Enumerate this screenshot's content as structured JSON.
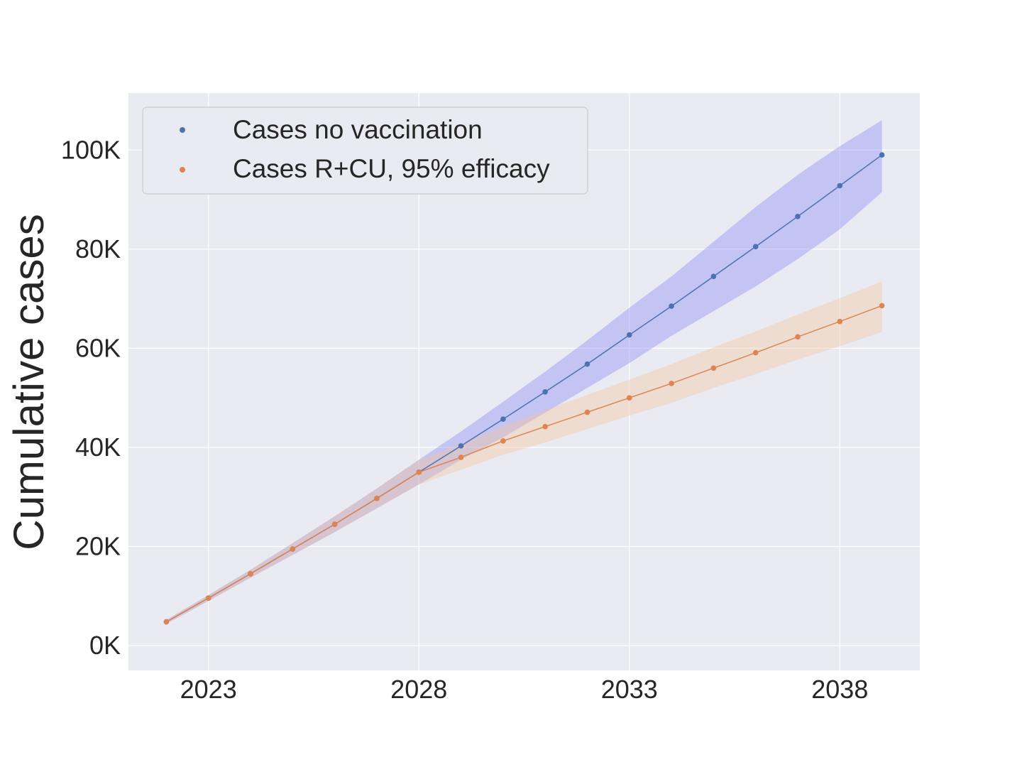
{
  "chart_data": {
    "type": "line",
    "title": "",
    "xlabel": "",
    "ylabel": "Cumulative cases",
    "x": [
      2022,
      2023,
      2024,
      2025,
      2026,
      2027,
      2028,
      2029,
      2030,
      2031,
      2032,
      2033,
      2034,
      2035,
      2036,
      2037,
      2038,
      2039
    ],
    "xlim": [
      2021.1,
      2039.9
    ],
    "ylim": [
      -5000,
      111500
    ],
    "xticks": [
      2023,
      2028,
      2033,
      2038
    ],
    "xtick_labels": [
      "2023",
      "2028",
      "2033",
      "2038"
    ],
    "yticks": [
      0,
      20000,
      40000,
      60000,
      80000,
      100000
    ],
    "ytick_labels": [
      "0K",
      "20K",
      "40K",
      "60K",
      "80K",
      "100K"
    ],
    "grid": true,
    "background": "#eaeaf2",
    "legend_position": "top-left",
    "series": [
      {
        "name": "Cases no vaccination",
        "color": "#4c72b0",
        "band_color": "#8a8cf5",
        "values": [
          4800,
          9600,
          14500,
          19500,
          24500,
          29700,
          35000,
          40300,
          45700,
          51200,
          56800,
          62700,
          68500,
          74500,
          80500,
          86600,
          92800,
          99000
        ],
        "lower": [
          4400,
          9000,
          13700,
          18300,
          22900,
          27700,
          32500,
          37500,
          42000,
          47000,
          52000,
          57000,
          62500,
          67500,
          72500,
          78000,
          84000,
          91500
        ],
        "upper": [
          5200,
          10200,
          15300,
          20700,
          26100,
          31700,
          37500,
          43200,
          49200,
          55300,
          61600,
          68200,
          74500,
          81500,
          88500,
          95000,
          100800,
          106000
        ]
      },
      {
        "name": "Cases R+CU, 95% efficacy",
        "color": "#dd8452",
        "band_color": "#f3c99a",
        "values": [
          4800,
          9600,
          14500,
          19500,
          24500,
          29700,
          35000,
          38000,
          41300,
          44200,
          47100,
          50000,
          52900,
          56000,
          59100,
          62300,
          65400,
          68600
        ],
        "lower": [
          4400,
          9000,
          13700,
          18300,
          22900,
          27700,
          32500,
          35500,
          38500,
          41000,
          43700,
          46400,
          49000,
          52000,
          54800,
          57700,
          60400,
          63300
        ],
        "upper": [
          5200,
          10200,
          15300,
          20700,
          26100,
          31700,
          37500,
          40700,
          44300,
          47500,
          50600,
          53700,
          56800,
          60200,
          63400,
          66800,
          70100,
          73500
        ]
      }
    ]
  }
}
